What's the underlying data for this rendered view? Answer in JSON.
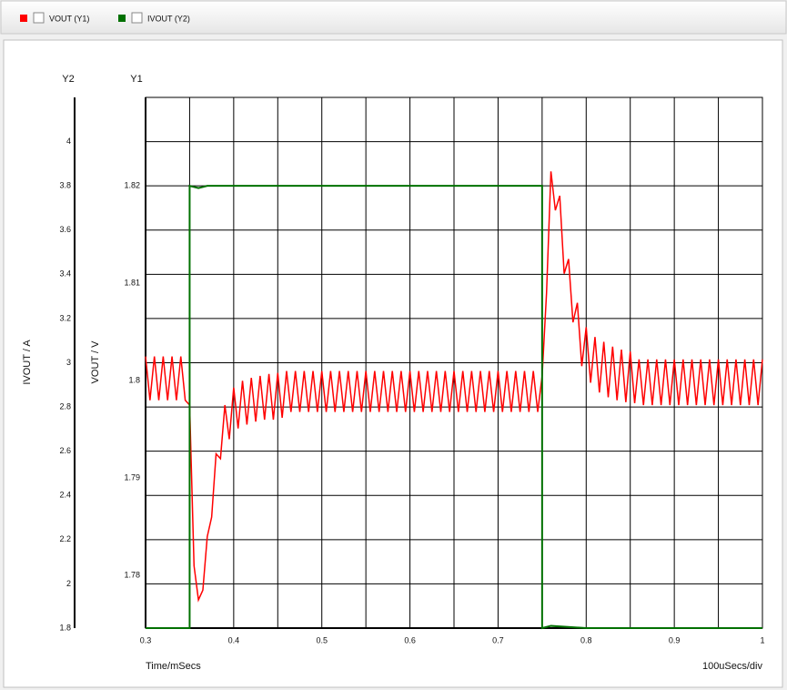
{
  "chart_data": {
    "type": "line",
    "legend": "top-left",
    "xlabel": "Time/mSecs",
    "x_scale_label": "100uSecs/div",
    "y_axis_name": "Y1",
    "ylabel": "VOUT / V",
    "y2_axis_name": "Y2",
    "y2label": "IVOUT / A",
    "xlim": [
      0.3,
      1
    ],
    "xticks": [
      0.3,
      0.4,
      0.5,
      0.6,
      0.7,
      0.8,
      0.9,
      1
    ],
    "xgrid": [
      0.3,
      0.35,
      0.4,
      0.45,
      0.5,
      0.55,
      0.6,
      0.65,
      0.7,
      0.75,
      0.8,
      0.85,
      0.9,
      0.95,
      1
    ],
    "ylim": [
      1.7746,
      1.8291
    ],
    "yticks": [
      1.78,
      1.79,
      1.8,
      1.81,
      1.82
    ],
    "y2lim": [
      1.8,
      4.2
    ],
    "y2ticks": [
      1.8,
      2,
      2.2,
      2.4,
      2.6,
      2.8,
      3,
      3.2,
      3.4,
      3.6,
      3.8,
      4
    ],
    "series": [
      {
        "name": "VOUT (Y1)",
        "color": "#ff0000",
        "axis": "y",
        "x": [
          0.3,
          0.305,
          0.31,
          0.315,
          0.32,
          0.325,
          0.33,
          0.335,
          0.34,
          0.345,
          0.35,
          0.355,
          0.36,
          0.365,
          0.37,
          0.375,
          0.38,
          0.385,
          0.39,
          0.395,
          0.4,
          0.405,
          0.41,
          0.415,
          0.42,
          0.425,
          0.43,
          0.435,
          0.44,
          0.445,
          0.45,
          0.455,
          0.46,
          0.465,
          0.47,
          0.475,
          0.48,
          0.485,
          0.49,
          0.495,
          0.5,
          0.505,
          0.51,
          0.515,
          0.52,
          0.525,
          0.53,
          0.535,
          0.54,
          0.545,
          0.55,
          0.555,
          0.56,
          0.565,
          0.57,
          0.575,
          0.58,
          0.585,
          0.59,
          0.595,
          0.6,
          0.605,
          0.61,
          0.615,
          0.62,
          0.625,
          0.63,
          0.635,
          0.64,
          0.645,
          0.65,
          0.655,
          0.66,
          0.665,
          0.67,
          0.675,
          0.68,
          0.685,
          0.69,
          0.695,
          0.7,
          0.705,
          0.71,
          0.715,
          0.72,
          0.725,
          0.73,
          0.735,
          0.74,
          0.745,
          0.75,
          0.755,
          0.76,
          0.765,
          0.77,
          0.775,
          0.78,
          0.785,
          0.79,
          0.795,
          0.8,
          0.805,
          0.81,
          0.815,
          0.82,
          0.825,
          0.83,
          0.835,
          0.84,
          0.845,
          0.85,
          0.855,
          0.86,
          0.865,
          0.87,
          0.875,
          0.88,
          0.885,
          0.89,
          0.895,
          0.9,
          0.905,
          0.91,
          0.915,
          0.92,
          0.925,
          0.93,
          0.935,
          0.94,
          0.945,
          0.95,
          0.955,
          0.96,
          0.965,
          0.97,
          0.975,
          0.98,
          0.985,
          0.99,
          0.995,
          1
        ],
        "values": [
          1.8025,
          1.798,
          1.8025,
          1.798,
          1.8025,
          1.798,
          1.8025,
          1.798,
          1.8025,
          1.798,
          1.7975,
          1.781,
          1.7775,
          1.7785,
          1.784,
          1.786,
          1.7925,
          1.792,
          1.7975,
          1.794,
          1.7993,
          1.7951,
          1.8,
          1.7955,
          1.8003,
          1.7958,
          1.8005,
          1.796,
          1.8007,
          1.796,
          1.8008,
          1.7962,
          1.801,
          1.7968,
          1.801,
          1.7968,
          1.801,
          1.7968,
          1.801,
          1.7968,
          1.801,
          1.7968,
          1.801,
          1.7968,
          1.801,
          1.7968,
          1.801,
          1.7968,
          1.801,
          1.7968,
          1.801,
          1.7968,
          1.801,
          1.7968,
          1.801,
          1.7968,
          1.801,
          1.7968,
          1.801,
          1.7968,
          1.801,
          1.7968,
          1.801,
          1.7968,
          1.801,
          1.7968,
          1.801,
          1.7968,
          1.801,
          1.7968,
          1.801,
          1.7968,
          1.801,
          1.7968,
          1.801,
          1.7968,
          1.801,
          1.7968,
          1.801,
          1.7968,
          1.801,
          1.7968,
          1.801,
          1.7968,
          1.801,
          1.7968,
          1.801,
          1.7968,
          1.801,
          1.7968,
          1.8005,
          1.809,
          1.8215,
          1.8175,
          1.819,
          1.811,
          1.8125,
          1.806,
          1.808,
          1.8015,
          1.8055,
          1.7998,
          1.8045,
          1.7988,
          1.804,
          1.7983,
          1.8035,
          1.798,
          1.8032,
          1.7978,
          1.803,
          1.7977,
          1.8022,
          1.7975,
          1.8022,
          1.7975,
          1.8022,
          1.7975,
          1.8022,
          1.7975,
          1.8022,
          1.7975,
          1.8022,
          1.7975,
          1.8022,
          1.7975,
          1.8022,
          1.7975,
          1.8022,
          1.7975,
          1.8022,
          1.7975,
          1.8022,
          1.7975,
          1.8022,
          1.7975,
          1.8022,
          1.7975,
          1.8022,
          1.7975,
          1.8022
        ]
      },
      {
        "name": "IVOUT (Y2)",
        "color": "#007000",
        "axis": "y2",
        "x": [
          0.3,
          0.35,
          0.35,
          0.36,
          0.37,
          0.4,
          0.75,
          0.75,
          0.76,
          0.8,
          1
        ],
        "values": [
          1.8,
          1.8,
          3.8,
          3.79,
          3.8,
          3.8,
          3.8,
          1.8,
          1.81,
          1.8,
          1.8
        ]
      }
    ]
  }
}
